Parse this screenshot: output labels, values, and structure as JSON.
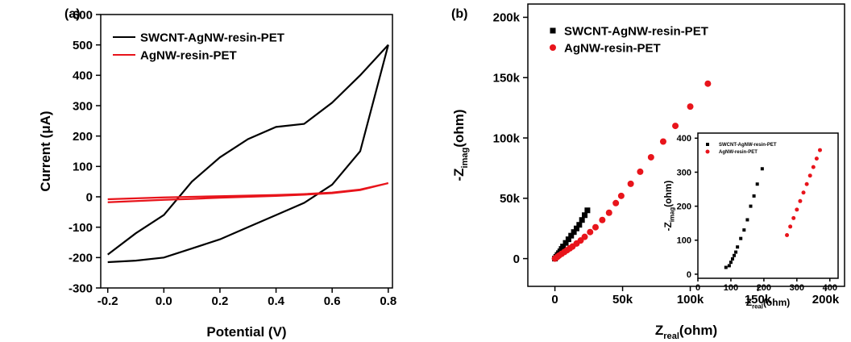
{
  "chart_data": [
    {
      "type": "line",
      "label": "(a)",
      "x_label": [
        "Potential (V)"
      ],
      "y_label": [
        "Current (μA)"
      ],
      "x": [
        -0.2,
        -0.1,
        0,
        0.1,
        0.2,
        0.3,
        0.4,
        0.5,
        0.6,
        0.7,
        0.8,
        0.7,
        0.6,
        0.5,
        0.4,
        0.3,
        0.2,
        0.1,
        0,
        -0.1,
        -0.2
      ],
      "series": [
        {
          "name": "SWCNT-AgNW-resin-PET",
          "color": "#000000",
          "values": [
            -190,
            -120,
            -60,
            50,
            130,
            190,
            230,
            240,
            310,
            400,
            500,
            150,
            40,
            -20,
            -60,
            -100,
            -140,
            -170,
            -200,
            -210,
            -215
          ]
        },
        {
          "name": "AgNW-resin-PET",
          "color": "#e8141b",
          "values": [
            -8,
            -5,
            -2,
            0,
            2,
            4,
            6,
            9,
            14,
            24,
            45,
            22,
            12,
            7,
            3,
            0,
            -3,
            -7,
            -10,
            -14,
            -18
          ]
        }
      ],
      "xlim": [
        -0.225,
        0.815
      ],
      "ylim": [
        -300,
        600
      ],
      "xticks": [
        -0.2,
        {
          "value": 0,
          "label": "0.0"
        },
        0.2,
        0.4,
        0.6,
        0.8
      ],
      "yticks": [
        -300,
        -200,
        -100,
        0,
        100,
        200,
        300,
        400,
        500,
        600
      ],
      "legend": "upper left"
    },
    {
      "type": "scatter",
      "label": "(b)",
      "x_label": [
        "Z",
        "real",
        "(ohm)"
      ],
      "y_label": [
        "-Z",
        "imag",
        "(ohm)"
      ],
      "series": [
        {
          "name": "SWCNT-AgNW-resin-PET",
          "color": "#000000",
          "marker": "square",
          "x": [
            0,
            1000,
            2000,
            3000,
            4000,
            5000,
            6000,
            8000,
            10000,
            12000,
            14000,
            16000,
            18000,
            20000,
            22000,
            24000
          ],
          "values": [
            0,
            1500,
            3000,
            4500,
            6000,
            8000,
            10000,
            13000,
            16000,
            19000,
            22000,
            25000,
            28000,
            32000,
            36000,
            40000
          ]
        },
        {
          "name": "AgNW-resin-PET",
          "color": "#e8141b",
          "marker": "circle",
          "x": [
            0,
            1000,
            2000,
            3000,
            5000,
            7000,
            9000,
            11000,
            13000,
            16000,
            19000,
            22000,
            26000,
            30000,
            35000,
            40000,
            45000,
            49000,
            56000,
            63000,
            71000,
            80000,
            89000,
            100000,
            113000
          ],
          "values": [
            0,
            800,
            1600,
            2500,
            4000,
            5500,
            7000,
            8500,
            10000,
            12500,
            15000,
            18000,
            22000,
            26000,
            32000,
            38000,
            46000,
            52000,
            62000,
            72000,
            84000,
            97000,
            110000,
            126000,
            145000
          ]
        }
      ],
      "xlim": [
        -20000,
        214000
      ],
      "ylim": [
        -23000,
        211000
      ],
      "xticks": [
        0,
        {
          "value": 50000,
          "label": "50k"
        },
        {
          "value": 100000,
          "label": "100k"
        },
        {
          "value": 150000,
          "label": "150k"
        },
        {
          "value": 200000,
          "label": "200k"
        }
      ],
      "yticks": [
        0,
        {
          "value": 50000,
          "label": "50k"
        },
        {
          "value": 100000,
          "label": "100k"
        },
        {
          "value": 150000,
          "label": "150k"
        },
        {
          "value": 200000,
          "label": "200k"
        }
      ],
      "legend": "upper left"
    },
    {
      "type": "scatter",
      "x_label": [
        "Z",
        "real",
        "(ohm)"
      ],
      "y_label": [
        "-Z",
        "imag",
        "(ohm)"
      ],
      "series": [
        {
          "name": "SWCNT-AgNW-resin-PET",
          "color": "#000000",
          "marker": "square",
          "x": [
            85,
            95,
            100,
            105,
            110,
            115,
            120,
            130,
            140,
            150,
            160,
            170,
            180,
            195
          ],
          "values": [
            20,
            25,
            35,
            45,
            55,
            65,
            80,
            105,
            130,
            160,
            200,
            230,
            265,
            310
          ]
        },
        {
          "name": "AgNW-resin-PET",
          "color": "#e8141b",
          "marker": "circle",
          "x": [
            270,
            280,
            290,
            300,
            310,
            320,
            330,
            340,
            350,
            360,
            370
          ],
          "values": [
            115,
            140,
            165,
            190,
            215,
            240,
            265,
            290,
            315,
            340,
            365
          ]
        }
      ],
      "xlim": [
        0,
        425
      ],
      "ylim": [
        -12,
        415
      ],
      "xticks": [
        0,
        100,
        200,
        300,
        400
      ],
      "yticks": [
        0,
        100,
        200,
        300,
        400
      ],
      "legend": "upper left"
    }
  ]
}
